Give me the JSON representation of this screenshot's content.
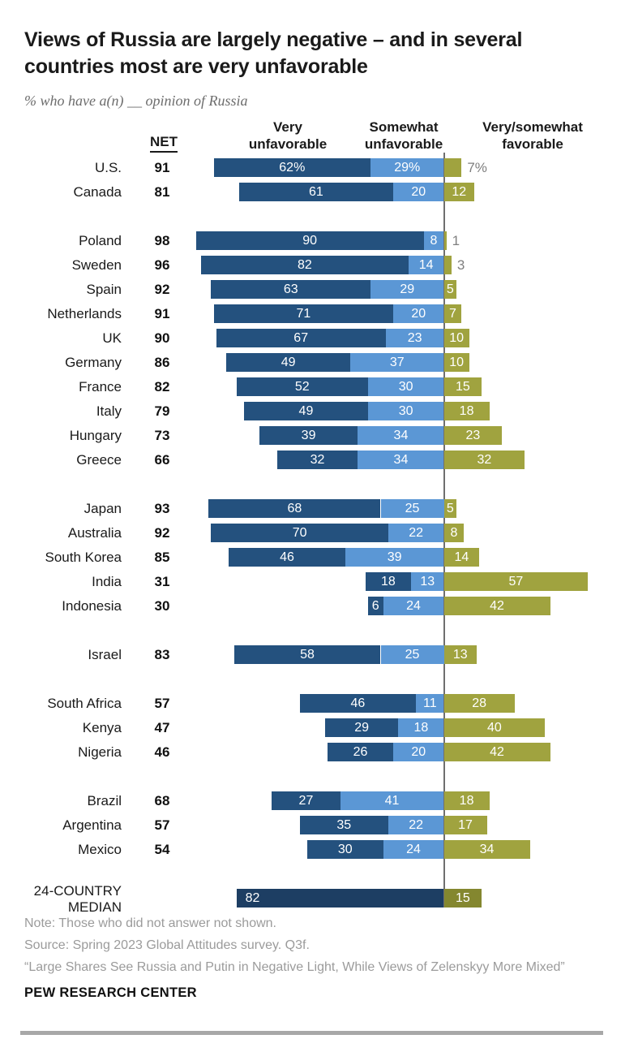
{
  "title": "Views of Russia are largely negative – and in several countries most are very unfavorable",
  "subtitle": "% who have a(n) __ opinion of Russia",
  "columns": {
    "net": "NET",
    "very_unfavorable": "Very unfavorable",
    "somewhat_unfavorable": "Somewhat unfavorable",
    "favorable": "Very/somewhat favorable"
  },
  "colors": {
    "very_unfavorable": "#24517e",
    "somewhat_unfavorable": "#5b97d5",
    "favorable": "#a0a33f",
    "median_very_unfavorable": "#1d3e63",
    "median_favorable": "#84872f",
    "axis": "#6f6f6f",
    "outside_label": "#7f7f7f"
  },
  "chart_data": {
    "type": "bar",
    "orientation": "horizontal",
    "stacked": true,
    "unit": "%",
    "series_names": [
      "Very unfavorable",
      "Somewhat unfavorable",
      "Very/somewhat favorable"
    ],
    "groups": [
      [
        {
          "country": "U.S.",
          "net": "91",
          "values": [
            62,
            29,
            7
          ],
          "labels": [
            "62%",
            "29%",
            "7%"
          ],
          "favorable_outside": true
        },
        {
          "country": "Canada",
          "net": "81",
          "values": [
            61,
            20,
            12
          ],
          "labels": [
            "61",
            "20",
            "12"
          ]
        }
      ],
      [
        {
          "country": "Poland",
          "net": "98",
          "values": [
            90,
            8,
            1
          ],
          "labels": [
            "90",
            "8",
            "1"
          ],
          "favorable_outside": true
        },
        {
          "country": "Sweden",
          "net": "96",
          "values": [
            82,
            14,
            3
          ],
          "labels": [
            "82",
            "14",
            "3"
          ],
          "favorable_outside": true
        },
        {
          "country": "Spain",
          "net": "92",
          "values": [
            63,
            29,
            5
          ],
          "labels": [
            "63",
            "29",
            "5"
          ]
        },
        {
          "country": "Netherlands",
          "net": "91",
          "values": [
            71,
            20,
            7
          ],
          "labels": [
            "71",
            "20",
            "7"
          ]
        },
        {
          "country": "UK",
          "net": "90",
          "values": [
            67,
            23,
            10
          ],
          "labels": [
            "67",
            "23",
            "10"
          ]
        },
        {
          "country": "Germany",
          "net": "86",
          "values": [
            49,
            37,
            10
          ],
          "labels": [
            "49",
            "37",
            "10"
          ]
        },
        {
          "country": "France",
          "net": "82",
          "values": [
            52,
            30,
            15
          ],
          "labels": [
            "52",
            "30",
            "15"
          ]
        },
        {
          "country": "Italy",
          "net": "79",
          "values": [
            49,
            30,
            18
          ],
          "labels": [
            "49",
            "30",
            "18"
          ]
        },
        {
          "country": "Hungary",
          "net": "73",
          "values": [
            39,
            34,
            23
          ],
          "labels": [
            "39",
            "34",
            "23"
          ]
        },
        {
          "country": "Greece",
          "net": "66",
          "values": [
            32,
            34,
            32
          ],
          "labels": [
            "32",
            "34",
            "32"
          ]
        }
      ],
      [
        {
          "country": "Japan",
          "net": "93",
          "values": [
            68,
            25,
            5
          ],
          "labels": [
            "68",
            "25",
            "5"
          ]
        },
        {
          "country": "Australia",
          "net": "92",
          "values": [
            70,
            22,
            8
          ],
          "labels": [
            "70",
            "22",
            "8"
          ]
        },
        {
          "country": "South Korea",
          "net": "85",
          "values": [
            46,
            39,
            14
          ],
          "labels": [
            "46",
            "39",
            "14"
          ]
        },
        {
          "country": "India",
          "net": "31",
          "values": [
            18,
            13,
            57
          ],
          "labels": [
            "18",
            "13",
            "57"
          ]
        },
        {
          "country": "Indonesia",
          "net": "30",
          "values": [
            6,
            24,
            42
          ],
          "labels": [
            "6",
            "24",
            "42"
          ]
        }
      ],
      [
        {
          "country": "Israel",
          "net": "83",
          "values": [
            58,
            25,
            13
          ],
          "labels": [
            "58",
            "25",
            "13"
          ]
        }
      ],
      [
        {
          "country": "South Africa",
          "net": "57",
          "values": [
            46,
            11,
            28
          ],
          "labels": [
            "46",
            "11",
            "28"
          ]
        },
        {
          "country": "Kenya",
          "net": "47",
          "values": [
            29,
            18,
            40
          ],
          "labels": [
            "29",
            "18",
            "40"
          ]
        },
        {
          "country": "Nigeria",
          "net": "46",
          "values": [
            26,
            20,
            42
          ],
          "labels": [
            "26",
            "20",
            "42"
          ]
        }
      ],
      [
        {
          "country": "Brazil",
          "net": "68",
          "values": [
            27,
            41,
            18
          ],
          "labels": [
            "27",
            "41",
            "18"
          ]
        },
        {
          "country": "Argentina",
          "net": "57",
          "values": [
            35,
            22,
            17
          ],
          "labels": [
            "35",
            "22",
            "17"
          ]
        },
        {
          "country": "Mexico",
          "net": "54",
          "values": [
            30,
            24,
            34
          ],
          "labels": [
            "30",
            "24",
            "34"
          ]
        }
      ],
      [
        {
          "country": "24-COUNTRY MEDIAN",
          "net": null,
          "values": [
            82,
            0,
            15
          ],
          "labels": [
            "82",
            null,
            "15"
          ],
          "median": true
        }
      ]
    ]
  },
  "footer": {
    "note": "Note: Those who did not answer not shown.",
    "source": "Source: Spring 2023 Global Attitudes survey. Q3f.",
    "report": "“Large Shares See Russia and Putin in Negative Light, While Views of Zelenskyy More Mixed”",
    "brand": "PEW RESEARCH CENTER"
  }
}
